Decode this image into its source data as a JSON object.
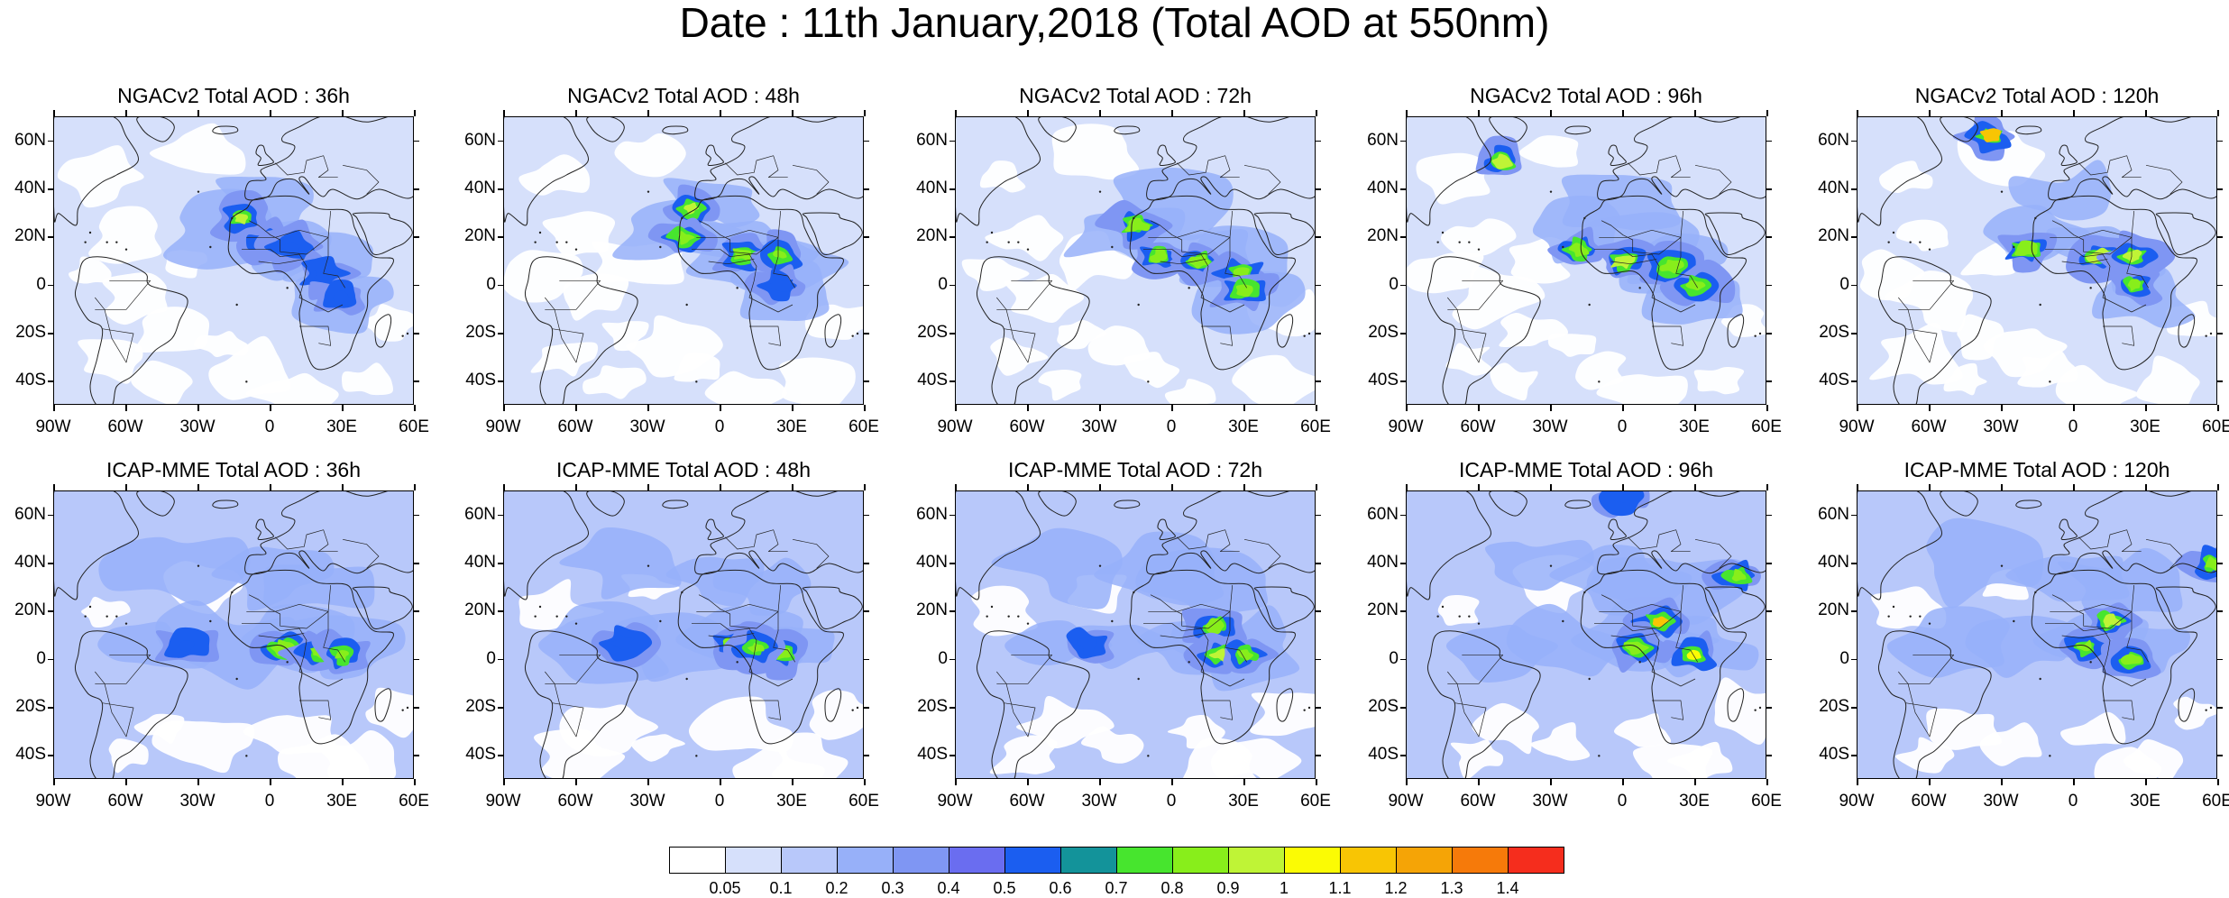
{
  "title": "Date : 11th January,2018 (Total AOD at 550nm)",
  "panels": [
    {
      "row": 0,
      "col": 0,
      "title": "NGACv2 Total AOD : 36h",
      "model": "NGACv2",
      "lead": "36h",
      "hotspots": [
        {
          "lon": -12,
          "lat": 28,
          "c": 0.9
        },
        {
          "lon": -3,
          "lat": 18,
          "c": 0.55
        },
        {
          "lon": 8,
          "lat": 16,
          "c": 0.5
        },
        {
          "lon": 22,
          "lat": 5,
          "c": 0.55
        },
        {
          "lon": 30,
          "lat": -5,
          "c": 0.5
        }
      ]
    },
    {
      "row": 0,
      "col": 1,
      "title": "NGACv2 Total AOD : 48h",
      "model": "NGACv2",
      "lead": "48h",
      "hotspots": [
        {
          "lon": -12,
          "lat": 32,
          "c": 0.9
        },
        {
          "lon": -15,
          "lat": 20,
          "c": 0.8
        },
        {
          "lon": 10,
          "lat": 13,
          "c": 0.8
        },
        {
          "lon": 25,
          "lat": 13,
          "c": 0.8
        },
        {
          "lon": 25,
          "lat": 0,
          "c": 0.5
        }
      ]
    },
    {
      "row": 0,
      "col": 2,
      "title": "NGACv2 Total AOD : 72h",
      "model": "NGACv2",
      "lead": "72h",
      "hotspots": [
        {
          "lon": -15,
          "lat": 25,
          "c": 0.8
        },
        {
          "lon": -5,
          "lat": 12,
          "c": 0.85
        },
        {
          "lon": 12,
          "lat": 10,
          "c": 0.85
        },
        {
          "lon": 28,
          "lat": 5,
          "c": 0.8
        },
        {
          "lon": 30,
          "lat": -2,
          "c": 0.8
        }
      ]
    },
    {
      "row": 0,
      "col": 3,
      "title": "NGACv2 Total AOD : 96h",
      "model": "NGACv2",
      "lead": "96h",
      "hotspots": [
        {
          "lon": -50,
          "lat": 52,
          "c": 0.9
        },
        {
          "lon": -18,
          "lat": 15,
          "c": 0.85
        },
        {
          "lon": 0,
          "lat": 10,
          "c": 0.9
        },
        {
          "lon": 20,
          "lat": 8,
          "c": 0.85
        },
        {
          "lon": 30,
          "lat": 0,
          "c": 0.8
        }
      ]
    },
    {
      "row": 0,
      "col": 4,
      "title": "NGACv2 Total AOD : 120h",
      "model": "NGACv2",
      "lead": "120h",
      "hotspots": [
        {
          "lon": -35,
          "lat": 62,
          "c": 1.1
        },
        {
          "lon": -20,
          "lat": 15,
          "c": 0.85
        },
        {
          "lon": 10,
          "lat": 12,
          "c": 0.9
        },
        {
          "lon": 25,
          "lat": 12,
          "c": 0.95
        },
        {
          "lon": 25,
          "lat": 0,
          "c": 0.8
        }
      ]
    },
    {
      "row": 1,
      "col": 0,
      "title": "ICAP-MME Total AOD : 36h",
      "model": "ICAP-MME",
      "lead": "36h",
      "hotspots": [
        {
          "lon": -35,
          "lat": 6,
          "c": 0.5
        },
        {
          "lon": 5,
          "lat": 5,
          "c": 0.8
        },
        {
          "lon": 20,
          "lat": 3,
          "c": 0.85
        },
        {
          "lon": 30,
          "lat": 2,
          "c": 0.85
        }
      ]
    },
    {
      "row": 1,
      "col": 1,
      "title": "ICAP-MME Total AOD : 48h",
      "model": "ICAP-MME",
      "lead": "48h",
      "hotspots": [
        {
          "lon": -40,
          "lat": 7,
          "c": 0.5
        },
        {
          "lon": 5,
          "lat": 6,
          "c": 0.85
        },
        {
          "lon": 25,
          "lat": 3,
          "c": 0.85
        },
        {
          "lon": 15,
          "lat": 5,
          "c": 0.8
        }
      ]
    },
    {
      "row": 1,
      "col": 2,
      "title": "ICAP-MME Total AOD : 72h",
      "model": "ICAP-MME",
      "lead": "72h",
      "hotspots": [
        {
          "lon": -35,
          "lat": 6,
          "c": 0.5
        },
        {
          "lon": 18,
          "lat": 14,
          "c": 0.85
        },
        {
          "lon": 20,
          "lat": 2,
          "c": 0.9
        },
        {
          "lon": 30,
          "lat": 2,
          "c": 0.85
        }
      ]
    },
    {
      "row": 1,
      "col": 3,
      "title": "ICAP-MME Total AOD : 96h",
      "model": "ICAP-MME",
      "lead": "96h",
      "hotspots": [
        {
          "lon": 0,
          "lat": 68,
          "c": 0.5
        },
        {
          "lon": 15,
          "lat": 16,
          "c": 1.15
        },
        {
          "lon": 5,
          "lat": 5,
          "c": 0.85
        },
        {
          "lon": 30,
          "lat": 2,
          "c": 1.0
        },
        {
          "lon": 48,
          "lat": 35,
          "c": 0.85
        }
      ]
    },
    {
      "row": 1,
      "col": 4,
      "title": "ICAP-MME Total AOD : 120h",
      "model": "ICAP-MME",
      "lead": "120h",
      "hotspots": [
        {
          "lon": 15,
          "lat": 16,
          "c": 0.95
        },
        {
          "lon": 5,
          "lat": 5,
          "c": 0.85
        },
        {
          "lon": 25,
          "lat": 0,
          "c": 0.85
        },
        {
          "lon": 58,
          "lat": 40,
          "c": 0.8
        }
      ]
    }
  ],
  "lat_ticks": [
    "60N",
    "40N",
    "20N",
    "0",
    "20S",
    "40S"
  ],
  "lat_values": [
    60,
    40,
    20,
    0,
    -20,
    -40
  ],
  "lon_ticks": [
    "90W",
    "60W",
    "30W",
    "0",
    "30E",
    "60E"
  ],
  "lon_values": [
    -90,
    -60,
    -30,
    0,
    30,
    60
  ],
  "map_extent": {
    "lon_min": -90,
    "lon_max": 60,
    "lat_min": -50,
    "lat_max": 70
  },
  "colorbar": {
    "labels": [
      "0.05",
      "0.1",
      "0.2",
      "0.3",
      "0.4",
      "0.5",
      "0.6",
      "0.7",
      "0.8",
      "0.9",
      "1",
      "1.1",
      "1.2",
      "1.3",
      "1.4"
    ],
    "colors": [
      "#ffffff",
      "#d6e0fb",
      "#b8c8fa",
      "#97b0f9",
      "#7f96f3",
      "#6a6df0",
      "#1b5ef0",
      "#13939a",
      "#47e52e",
      "#88ee1b",
      "#bff436",
      "#fbfb04",
      "#f8c504",
      "#f5a406",
      "#f67a0a",
      "#f52d1d"
    ]
  }
}
